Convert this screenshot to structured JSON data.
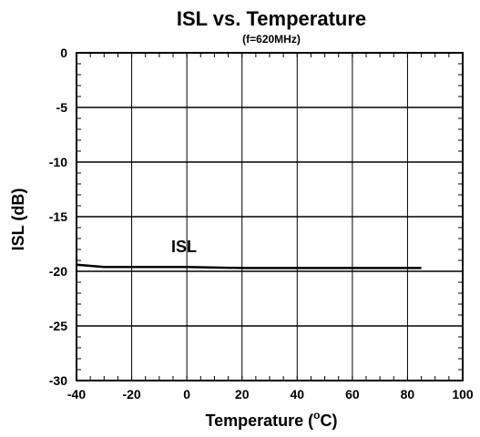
{
  "chart_data": {
    "type": "line",
    "title": "ISL vs. Temperature",
    "subtitle": "(f=620MHz)",
    "xlabel_main": "Temperature (",
    "xlabel_sup": "o",
    "xlabel_end": "C)",
    "ylabel": "ISL (dB)",
    "xlim": [
      -40,
      100
    ],
    "ylim": [
      -30,
      0
    ],
    "x_ticks": [
      -40,
      -20,
      0,
      20,
      40,
      60,
      80,
      100
    ],
    "y_ticks": [
      0,
      -5,
      -10,
      -15,
      -20,
      -25,
      -30
    ],
    "x_tick_labels": [
      "-40",
      "-20",
      "0",
      "20",
      "40",
      "60",
      "80",
      "100"
    ],
    "y_tick_labels": [
      "0",
      "-5",
      "-10",
      "-15",
      "-20",
      "-25",
      "-30"
    ],
    "minor_x_step": 5,
    "minor_y_step": 1,
    "grid": true,
    "series": [
      {
        "name": "ISL",
        "x": [
          -40,
          -30,
          -20,
          0,
          20,
          40,
          60,
          85
        ],
        "y": [
          -19.4,
          -19.6,
          -19.6,
          -19.6,
          -19.7,
          -19.7,
          -19.7,
          -19.7
        ]
      }
    ],
    "annotation": "ISL"
  }
}
